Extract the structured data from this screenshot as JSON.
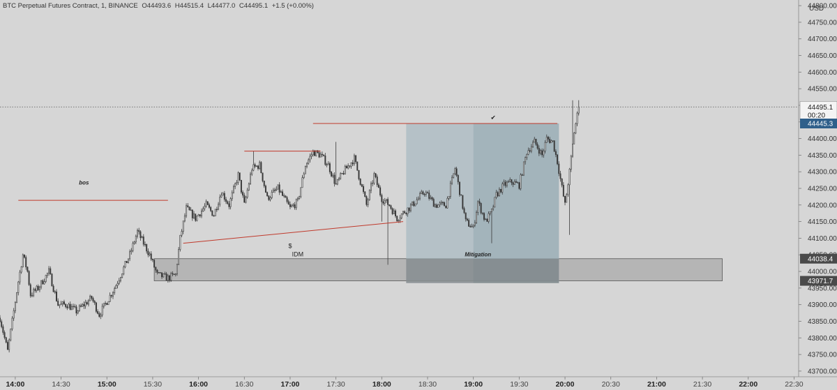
{
  "header": {
    "symbol": "BTC Perpetual Futures Contract, 1, BINANCE",
    "open": "O44493.6",
    "high": "H44515.4",
    "low": "L44477.0",
    "close": "C44495.1",
    "change": "+1.5 (+0.00%)"
  },
  "currency": "USD",
  "price_labels": {
    "last_price": "44495.1",
    "countdown": "00:20",
    "level_high": "44445.3",
    "zone_top": "44038.4",
    "zone_bottom": "43971.7"
  },
  "annotations": {
    "bos": "bos",
    "idm": "IDM",
    "dollar": "$",
    "mitigation": "Mitigation",
    "check": "✔"
  },
  "colors": {
    "background": "#d6d6d6",
    "candle": "#3a3a3a",
    "red_line": "#c0392b",
    "zone_fill": "#b5b5b5",
    "mitigation_box": "#a9b9c2",
    "label_blue": "#2f5f8a",
    "label_dark": "#4a4a4a"
  },
  "chart_data": {
    "type": "candlestick",
    "x_axis": {
      "labels": [
        "14:00",
        "14:30",
        "15:00",
        "15:30",
        "16:00",
        "16:30",
        "17:00",
        "17:30",
        "18:00",
        "18:30",
        "19:00",
        "19:30",
        "20:00",
        "20:30",
        "21:00",
        "21:30",
        "22:00",
        "22:30"
      ],
      "range": [
        "13:50",
        "22:33"
      ]
    },
    "y_axis": {
      "ticks": [
        43700,
        43750,
        43800,
        43850,
        43900,
        43950,
        44000,
        44050,
        44100,
        44150,
        44200,
        44250,
        44300,
        44350,
        44400,
        44450,
        44500,
        44550,
        44600,
        44650,
        44700,
        44750,
        44800
      ],
      "range": [
        43683,
        44817
      ]
    },
    "time_range": [
      "13:50",
      "20:09"
    ],
    "trace": [
      [
        "13:50",
        43860
      ],
      [
        "13:55",
        43760
      ],
      [
        "14:02",
        43970
      ],
      [
        "14:05",
        44050
      ],
      [
        "14:08",
        44000
      ],
      [
        "14:10",
        43930
      ],
      [
        "14:15",
        43950
      ],
      [
        "14:22",
        44000
      ],
      [
        "14:28",
        43900
      ],
      [
        "14:34",
        43900
      ],
      [
        "14:40",
        43880
      ],
      [
        "14:50",
        43920
      ],
      [
        "14:55",
        43870
      ],
      [
        "15:05",
        43950
      ],
      [
        "15:15",
        44050
      ],
      [
        "15:20",
        44120
      ],
      [
        "15:28",
        44050
      ],
      [
        "15:33",
        43990
      ],
      [
        "15:40",
        43980
      ],
      [
        "15:45",
        43990
      ],
      [
        "15:48",
        44100
      ],
      [
        "15:52",
        44190
      ],
      [
        "15:58",
        44160
      ],
      [
        "16:05",
        44200
      ],
      [
        "16:10",
        44170
      ],
      [
        "16:15",
        44240
      ],
      [
        "16:20",
        44200
      ],
      [
        "16:26",
        44290
      ],
      [
        "16:30",
        44200
      ],
      [
        "16:35",
        44310
      ],
      [
        "16:40",
        44320
      ],
      [
        "16:45",
        44220
      ],
      [
        "16:52",
        44250
      ],
      [
        "17:00",
        44190
      ],
      [
        "17:05",
        44210
      ],
      [
        "17:10",
        44320
      ],
      [
        "17:15",
        44360
      ],
      [
        "17:20",
        44350
      ],
      [
        "17:25",
        44320
      ],
      [
        "17:30",
        44260
      ],
      [
        "17:35",
        44300
      ],
      [
        "17:42",
        44340
      ],
      [
        "17:50",
        44200
      ],
      [
        "17:55",
        44290
      ],
      [
        "18:00",
        44220
      ],
      [
        "18:05",
        44200
      ],
      [
        "18:10",
        44160
      ],
      [
        "18:15",
        44180
      ],
      [
        "18:20",
        44200
      ],
      [
        "18:28",
        44240
      ],
      [
        "18:35",
        44200
      ],
      [
        "18:42",
        44200
      ],
      [
        "18:48",
        44310
      ],
      [
        "18:55",
        44150
      ],
      [
        "19:00",
        44130
      ],
      [
        "19:03",
        44210
      ],
      [
        "19:08",
        44150
      ],
      [
        "19:12",
        44180
      ],
      [
        "19:15",
        44230
      ],
      [
        "19:20",
        44260
      ],
      [
        "19:25",
        44270
      ],
      [
        "19:30",
        44260
      ],
      [
        "19:35",
        44360
      ],
      [
        "19:40",
        44390
      ],
      [
        "19:45",
        44350
      ],
      [
        "19:48",
        44400
      ],
      [
        "19:52",
        44390
      ],
      [
        "19:55",
        44330
      ],
      [
        "20:00",
        44200
      ],
      [
        "20:03",
        44300
      ],
      [
        "20:06",
        44420
      ],
      [
        "20:09",
        44495
      ]
    ],
    "drawings": [
      {
        "type": "horizontal-line",
        "label": "bos",
        "from": "14:02",
        "to": "15:40",
        "price": 44214
      },
      {
        "type": "horizontal-line",
        "from": "16:30",
        "to": "17:20",
        "price": 44362
      },
      {
        "type": "horizontal-line",
        "from": "17:15",
        "to": "19:55",
        "price": 44445.3
      },
      {
        "type": "trend-line",
        "label": "IDM",
        "from": [
          "15:50",
          44085
        ],
        "to": [
          "18:14",
          44150
        ]
      },
      {
        "type": "zone",
        "from": "15:31",
        "to": "21:43",
        "top": 44038.4,
        "bottom": 43971.7
      },
      {
        "type": "box",
        "label": "Mitigation",
        "from": "18:16",
        "to": "19:56",
        "top": 44445.3,
        "bottom": 43965
      },
      {
        "type": "box",
        "from": "19:00",
        "to": "19:56",
        "top": 44445.3,
        "bottom": 43965
      }
    ],
    "last_price": 44495.1,
    "grid": false
  }
}
